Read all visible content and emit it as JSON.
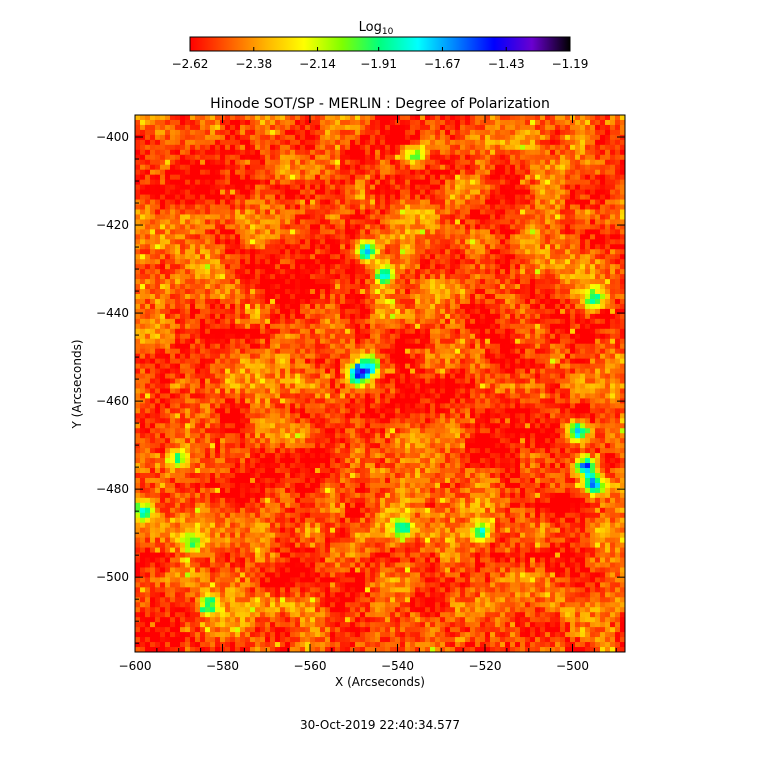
{
  "chart_data": {
    "type": "heatmap",
    "title": "Hinode SOT/SP - MERLIN : Degree of Polarization",
    "xlabel": "X (Arcseconds)",
    "ylabel": "Y (Arcseconds)",
    "xlim": [
      -600,
      -488
    ],
    "ylim": [
      -517,
      -395
    ],
    "x_ticks": [
      -600,
      -580,
      -560,
      -540,
      -520,
      -500
    ],
    "y_ticks": [
      -400,
      -420,
      -440,
      -460,
      -480,
      -500
    ],
    "x_tick_labels": [
      "−600",
      "−580",
      "−560",
      "−540",
      "−520",
      "−500"
    ],
    "y_tick_labels": [
      "−400",
      "−420",
      "−440",
      "−460",
      "−480",
      "−500"
    ],
    "grid": false,
    "colorbar": {
      "label_base": "Log",
      "label_sub": "10",
      "min": -2.62,
      "max": -1.19,
      "ticks": [
        -2.62,
        -2.38,
        -2.14,
        -1.91,
        -1.67,
        -1.43,
        -1.19
      ],
      "tick_labels": [
        "−2.62",
        "−2.38",
        "−2.14",
        "−1.91",
        "−1.67",
        "−1.43",
        "−1.19"
      ],
      "colormap": [
        "#ff0000",
        "#ff5a00",
        "#ffb400",
        "#ffff00",
        "#7fff00",
        "#00ff7f",
        "#00ffff",
        "#0080ff",
        "#0000ff",
        "#6a00d0",
        "#000000"
      ]
    },
    "background_level": -2.5,
    "features": [
      {
        "x": -547,
        "y": -426,
        "peak": -1.55
      },
      {
        "x": -543,
        "y": -431,
        "peak": -1.7
      },
      {
        "x": -549,
        "y": -454,
        "peak": -1.55
      },
      {
        "x": -546,
        "y": -452,
        "peak": -1.75
      },
      {
        "x": -497,
        "y": -475,
        "peak": -1.5
      },
      {
        "x": -499,
        "y": -467,
        "peak": -1.65
      },
      {
        "x": -495,
        "y": -479,
        "peak": -1.6
      },
      {
        "x": -539,
        "y": -489,
        "peak": -1.8
      },
      {
        "x": -598,
        "y": -485,
        "peak": -1.85
      },
      {
        "x": -590,
        "y": -473,
        "peak": -1.95
      },
      {
        "x": -521,
        "y": -490,
        "peak": -1.7
      },
      {
        "x": -495,
        "y": -437,
        "peak": -1.85
      },
      {
        "x": -536,
        "y": -404,
        "peak": -1.95
      },
      {
        "x": -587,
        "y": -492,
        "peak": -2.0
      },
      {
        "x": -583,
        "y": -506,
        "peak": -2.0
      }
    ]
  },
  "timestamp": "30-Oct-2019 22:40:34.577"
}
